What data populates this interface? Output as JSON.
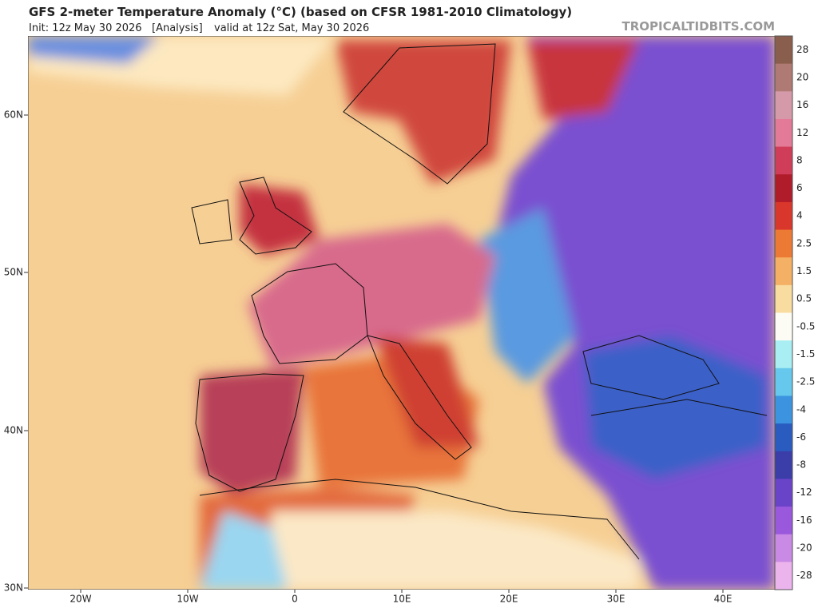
{
  "header": {
    "title": "GFS 2-meter Temperature Anomaly (°C) (based on CFSR 1981-2010 Climatology)",
    "init": "Init: 12z May 30 2026",
    "analysis": "[Analysis]",
    "valid": "valid at 12z Sat, May 30 2026",
    "watermark": "TROPICALTIDBITS.COM"
  },
  "map": {
    "lat_labels": [
      "60N",
      "50N",
      "40N",
      "30N"
    ],
    "lon_labels": [
      "20W",
      "10W",
      "0",
      "10E",
      "20E",
      "30E",
      "40E"
    ]
  },
  "colorbar": {
    "labels": [
      "28",
      "20",
      "16",
      "12",
      "8",
      "6",
      "4",
      "2.5",
      "1.5",
      "0.5",
      "-0.5",
      "-1.5",
      "-2.5",
      "-4",
      "-6",
      "-8",
      "-12",
      "-16",
      "-20",
      "-28"
    ],
    "colors": [
      "#8a5e4c",
      "#b07a74",
      "#d59aaa",
      "#e27a98",
      "#cf3d58",
      "#b01c2a",
      "#d9362c",
      "#ec7a34",
      "#f4b064",
      "#f9dca0",
      "#fdfcf4",
      "#a8eef2",
      "#66c8ec",
      "#3c94e0",
      "#2a5cc0",
      "#3b3ea8",
      "#6a44c8",
      "#9a58dc",
      "#c98ae6",
      "#ecb4ec"
    ]
  }
}
